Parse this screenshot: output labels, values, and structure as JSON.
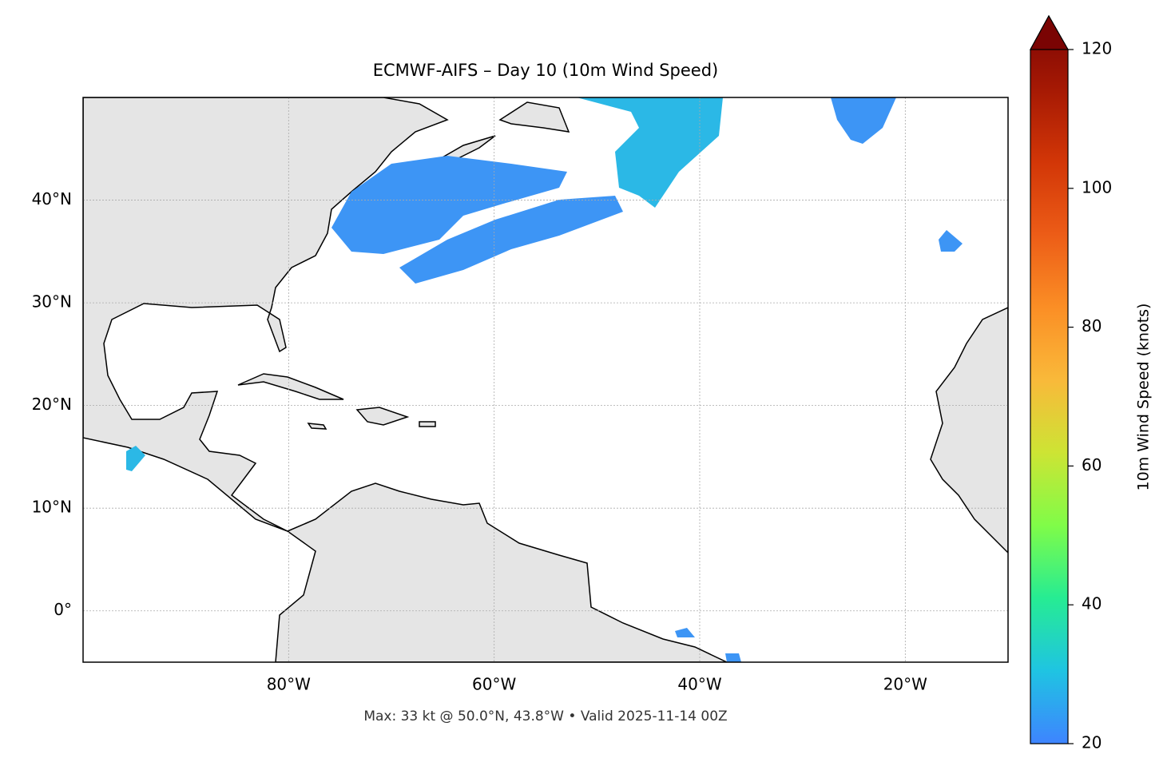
{
  "chart_data": {
    "type": "map",
    "title": "ECMWF-AIFS – Day 10 (10m Wind Speed)",
    "footer": "Max: 33 kt @ 50.0°N, 43.8°W • Valid 2025-11-14 00Z",
    "xlim": [
      -100,
      -10
    ],
    "ylim": [
      -5,
      50
    ],
    "xticks": [
      {
        "value": -80,
        "label": "80°W"
      },
      {
        "value": -60,
        "label": "60°W"
      },
      {
        "value": -40,
        "label": "40°W"
      },
      {
        "value": -20,
        "label": "20°W"
      }
    ],
    "yticks": [
      {
        "value": 0,
        "label": "0°"
      },
      {
        "value": 10,
        "label": "10°N"
      },
      {
        "value": 20,
        "label": "20°N"
      },
      {
        "value": 30,
        "label": "30°N"
      },
      {
        "value": 40,
        "label": "40°N"
      }
    ],
    "grid": true,
    "colorbar": {
      "label": "10m Wind Speed (knots)",
      "lim": [
        20,
        120
      ],
      "ticks": [
        20,
        40,
        60,
        80,
        100,
        120
      ]
    }
  }
}
